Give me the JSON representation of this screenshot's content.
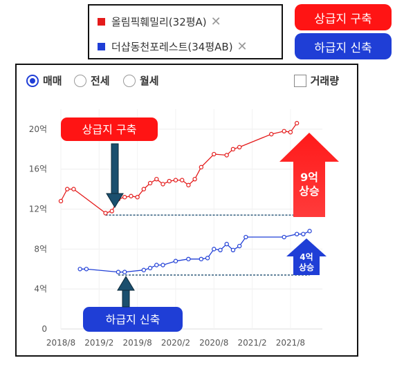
{
  "legend": {
    "items": [
      {
        "label": "올림픽훼밀리(32평A)",
        "color": "#e41b1b",
        "close": "✕"
      },
      {
        "label": "더샵동천포레스트(34평AB)",
        "color": "#1f3ed6",
        "close": "✕"
      }
    ]
  },
  "badges": {
    "old": {
      "label": "상급지 구축",
      "color": "#ff1414"
    },
    "new": {
      "label": "하급지 신축",
      "color": "#1f3ed6"
    }
  },
  "controls": {
    "radios": [
      {
        "label": "매매",
        "selected": true
      },
      {
        "label": "전세",
        "selected": false
      },
      {
        "label": "월세",
        "selected": false
      }
    ],
    "volume_checkbox": {
      "label": "거래량",
      "checked": false
    }
  },
  "chart_data": {
    "type": "line",
    "y_unit": "억",
    "ylim": [
      0,
      22
    ],
    "yticks": [
      {
        "value": 0,
        "label": "0"
      },
      {
        "value": 4,
        "label": "4억"
      },
      {
        "value": 8,
        "label": "8억"
      },
      {
        "value": 12,
        "label": "12억"
      },
      {
        "value": 16,
        "label": "16억"
      },
      {
        "value": 20,
        "label": "20억"
      }
    ],
    "xlim": [
      "2018-08",
      "2022-01"
    ],
    "xticks": [
      "2018/8",
      "2019/2",
      "2019/8",
      "2020/2",
      "2020/8",
      "2021/2",
      "2021/8"
    ],
    "grid": true,
    "series": [
      {
        "name": "올림픽훼밀리(32평A)",
        "color": "#e41b1b",
        "points": [
          [
            "2018-08",
            12.8
          ],
          [
            "2018-09",
            14.0
          ],
          [
            "2018-10",
            14.0
          ],
          [
            "2019-03",
            11.6
          ],
          [
            "2019-04",
            11.8
          ],
          [
            "2019-05",
            13.0
          ],
          [
            "2019-06",
            13.2
          ],
          [
            "2019-07",
            13.3
          ],
          [
            "2019-08",
            13.2
          ],
          [
            "2019-09",
            14.0
          ],
          [
            "2019-10",
            14.6
          ],
          [
            "2019-11",
            15.0
          ],
          [
            "2019-12",
            14.5
          ],
          [
            "2020-01",
            14.8
          ],
          [
            "2020-02",
            14.9
          ],
          [
            "2020-03",
            14.9
          ],
          [
            "2020-04",
            14.4
          ],
          [
            "2020-05",
            15.0
          ],
          [
            "2020-06",
            16.2
          ],
          [
            "2020-08",
            17.5
          ],
          [
            "2020-10",
            17.4
          ],
          [
            "2020-11",
            18.0
          ],
          [
            "2020-12",
            18.2
          ],
          [
            "2021-05",
            19.5
          ],
          [
            "2021-07",
            19.8
          ],
          [
            "2021-08",
            19.7
          ],
          [
            "2021-09",
            20.6
          ]
        ]
      },
      {
        "name": "더샵동천포레스트(34평AB)",
        "color": "#1f3ed6",
        "points": [
          [
            "2018-11",
            6.0
          ],
          [
            "2018-12",
            6.0
          ],
          [
            "2019-05",
            5.7
          ],
          [
            "2019-06",
            5.7
          ],
          [
            "2019-09",
            5.9
          ],
          [
            "2019-10",
            6.1
          ],
          [
            "2019-11",
            6.4
          ],
          [
            "2019-12",
            6.4
          ],
          [
            "2020-02",
            6.8
          ],
          [
            "2020-04",
            7.0
          ],
          [
            "2020-06",
            7.0
          ],
          [
            "2020-07",
            7.1
          ],
          [
            "2020-08",
            8.0
          ],
          [
            "2020-09",
            7.9
          ],
          [
            "2020-10",
            8.5
          ],
          [
            "2020-11",
            7.9
          ],
          [
            "2020-12",
            8.3
          ],
          [
            "2021-01",
            9.2
          ],
          [
            "2021-07",
            9.2
          ],
          [
            "2021-09",
            9.5
          ],
          [
            "2021-10",
            9.5
          ],
          [
            "2021-11",
            9.8
          ]
        ]
      }
    ],
    "annotations": {
      "old_label": "상급지 구축",
      "new_label": "하급지 신축",
      "rise_big_line1": "9억",
      "rise_big_line2": "상승",
      "rise_small_line1": "4억",
      "rise_small_line2": "상승",
      "baseline_red": 11.4,
      "baseline_blue": 5.4
    }
  }
}
